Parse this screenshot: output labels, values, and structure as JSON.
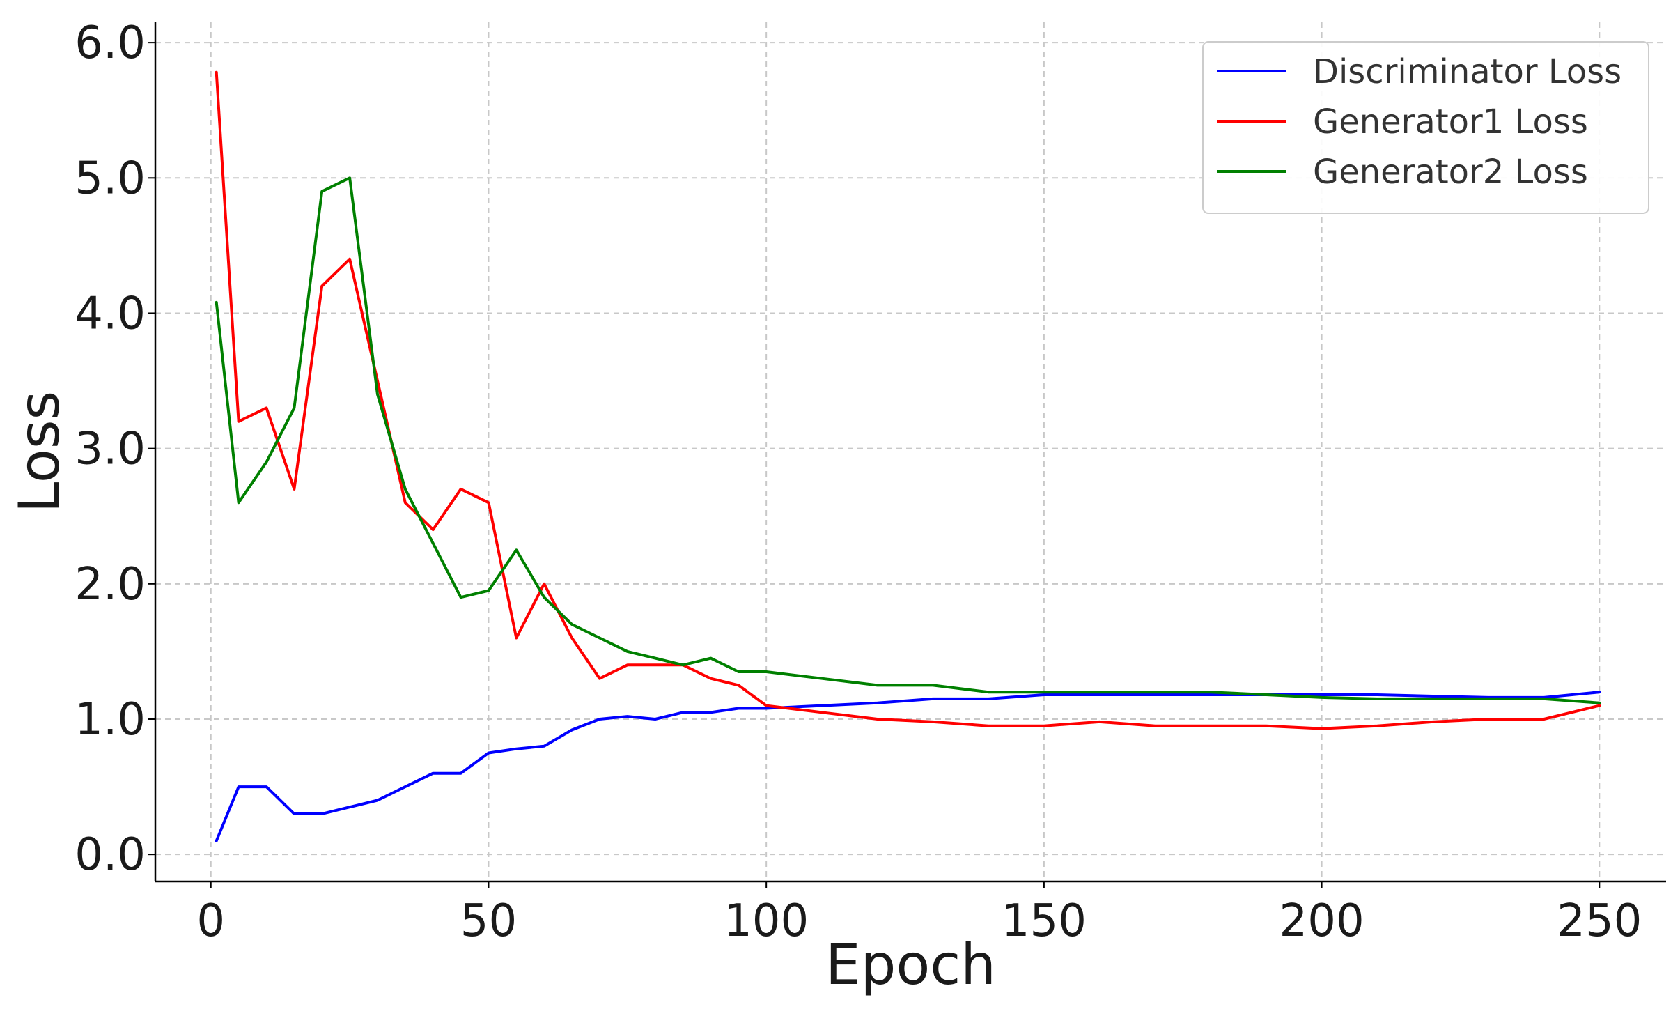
{
  "chart_data": {
    "type": "line",
    "xlabel": "Epoch",
    "ylabel": "Loss",
    "xlim": [
      -10,
      262
    ],
    "ylim": [
      -0.2,
      6.15
    ],
    "xticks": [
      0,
      50,
      100,
      150,
      200,
      250
    ],
    "xtick_labels": [
      "0",
      "50",
      "100",
      "150",
      "200",
      "250"
    ],
    "yticks": [
      0,
      1,
      2,
      3,
      4,
      5,
      6
    ],
    "ytick_labels": [
      "0.0",
      "1.0",
      "2.0",
      "3.0",
      "4.0",
      "5.0",
      "6.0"
    ],
    "grid": true,
    "legend_position": "top-right",
    "x": [
      1,
      5,
      10,
      15,
      20,
      25,
      30,
      35,
      40,
      45,
      50,
      55,
      60,
      65,
      70,
      75,
      80,
      85,
      90,
      95,
      100,
      110,
      120,
      130,
      140,
      150,
      160,
      170,
      180,
      190,
      200,
      210,
      220,
      230,
      240,
      250
    ],
    "series": [
      {
        "name": "Discriminator Loss",
        "color": "#0000ff",
        "values": [
          0.1,
          0.5,
          0.5,
          0.3,
          0.3,
          0.35,
          0.4,
          0.5,
          0.6,
          0.6,
          0.75,
          0.78,
          0.8,
          0.92,
          1.0,
          1.02,
          1.0,
          1.05,
          1.05,
          1.08,
          1.08,
          1.1,
          1.12,
          1.15,
          1.15,
          1.18,
          1.18,
          1.18,
          1.18,
          1.18,
          1.18,
          1.18,
          1.17,
          1.16,
          1.16,
          1.2
        ]
      },
      {
        "name": "Generator1 Loss",
        "color": "#ff0000",
        "values": [
          5.78,
          3.2,
          3.3,
          2.7,
          4.2,
          4.4,
          3.5,
          2.6,
          2.4,
          2.7,
          2.6,
          1.6,
          2.0,
          1.6,
          1.3,
          1.4,
          1.4,
          1.4,
          1.3,
          1.25,
          1.1,
          1.05,
          1.0,
          0.98,
          0.95,
          0.95,
          0.98,
          0.95,
          0.95,
          0.95,
          0.93,
          0.95,
          0.98,
          1.0,
          1.0,
          1.1
        ]
      },
      {
        "name": "Generator2 Loss",
        "color": "#008000",
        "values": [
          4.08,
          2.6,
          2.9,
          3.3,
          4.9,
          5.0,
          3.4,
          2.7,
          2.3,
          1.9,
          1.95,
          2.25,
          1.9,
          1.7,
          1.6,
          1.5,
          1.45,
          1.4,
          1.45,
          1.35,
          1.35,
          1.3,
          1.25,
          1.25,
          1.2,
          1.2,
          1.2,
          1.2,
          1.2,
          1.18,
          1.16,
          1.15,
          1.15,
          1.15,
          1.15,
          1.12
        ]
      }
    ]
  }
}
